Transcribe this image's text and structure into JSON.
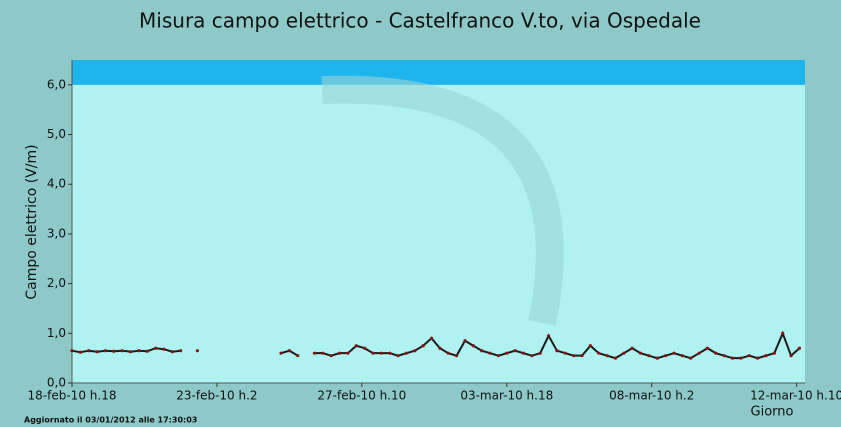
{
  "chart_data": {
    "type": "line",
    "title": "Misura campo elettrico - Castelfranco V.to, via Ospedale",
    "y_label": "Campo elettrico (V/m)",
    "x_label": "Giorno",
    "footer": "Aggiornato il 03/01/2012 alle 17:30:03",
    "xlim": [
      0,
      526
    ],
    "xticks": [
      {
        "value": 0,
        "label": "18-feb-10 h.18"
      },
      {
        "value": 104,
        "label": "23-feb-10 h.2"
      },
      {
        "value": 208,
        "label": "27-feb-10 h.10"
      },
      {
        "value": 312,
        "label": "03-mar-10 h.18"
      },
      {
        "value": 416,
        "label": "08-mar-10 h.2"
      },
      {
        "value": 520,
        "label": "12-mar-10 h.10"
      }
    ],
    "ylim": [
      0,
      6.5
    ],
    "yticks": [
      {
        "value": 0,
        "label": "0,0"
      },
      {
        "value": 1,
        "label": "1,0"
      },
      {
        "value": 2,
        "label": "2,0"
      },
      {
        "value": 3,
        "label": "3,0"
      },
      {
        "value": 4,
        "label": "4,0"
      },
      {
        "value": 5,
        "label": "5,0"
      },
      {
        "value": 6,
        "label": "6,0"
      }
    ],
    "threshold": 6,
    "threshold_color": "#1eb4ee",
    "plot_background": "#aef2f2",
    "x": [
      0,
      6,
      12,
      18,
      24,
      30,
      36,
      42,
      48,
      54,
      60,
      66,
      72,
      78,
      84,
      90,
      96,
      102,
      108,
      114,
      120,
      126,
      132,
      138,
      144,
      150,
      156,
      162,
      168,
      174,
      180,
      186,
      192,
      198,
      204,
      210,
      216,
      222,
      228,
      234,
      240,
      246,
      252,
      258,
      264,
      270,
      276,
      282,
      288,
      294,
      300,
      306,
      312,
      318,
      324,
      330,
      336,
      342,
      348,
      354,
      360,
      366,
      372,
      378,
      384,
      390,
      396,
      402,
      408,
      414,
      420,
      426,
      432,
      438,
      444,
      450,
      456,
      462,
      468,
      474,
      480,
      486,
      492,
      498,
      504,
      510,
      516,
      522
    ],
    "series": [
      {
        "name": "Campo elettrico",
        "color": "#1a1a1a",
        "marker_color": "#8b1010",
        "values": [
          0.65,
          0.62,
          0.65,
          0.63,
          0.65,
          0.64,
          0.65,
          0.63,
          0.65,
          0.64,
          0.7,
          0.68,
          0.63,
          0.65,
          null,
          0.65,
          null,
          null,
          null,
          null,
          null,
          null,
          null,
          null,
          null,
          0.6,
          0.65,
          0.55,
          null,
          0.6,
          0.6,
          0.55,
          0.6,
          0.6,
          0.75,
          0.7,
          0.6,
          0.6,
          0.6,
          0.55,
          0.6,
          0.65,
          0.75,
          0.9,
          0.7,
          0.6,
          0.55,
          0.85,
          0.75,
          0.65,
          0.6,
          0.55,
          0.6,
          0.65,
          0.6,
          0.55,
          0.6,
          0.95,
          0.65,
          0.6,
          0.55,
          0.55,
          0.75,
          0.6,
          0.55,
          0.5,
          0.6,
          0.7,
          0.6,
          0.55,
          0.5,
          0.55,
          0.6,
          0.55,
          0.5,
          0.6,
          0.7,
          0.6,
          0.55,
          0.5,
          0.5,
          0.55,
          0.5,
          0.55,
          0.6,
          1.0,
          0.55,
          0.7
        ]
      }
    ]
  }
}
